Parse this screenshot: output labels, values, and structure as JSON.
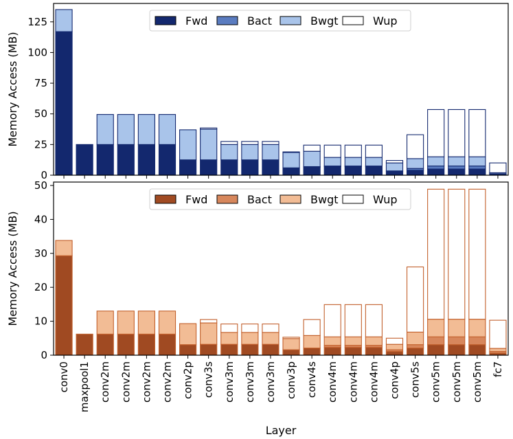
{
  "chart_data": [
    {
      "type": "bar",
      "stacked": true,
      "ylabel": "Memory Access (MB)",
      "xlabel": "",
      "ylim": [
        0,
        140
      ],
      "yticks": [
        0,
        25,
        50,
        75,
        100,
        125
      ],
      "legend_position": "top-center",
      "categories": [
        "conv0",
        "maxpool1",
        "conv2m",
        "conv2m",
        "conv2m",
        "conv2m",
        "conv2p",
        "conv3s",
        "conv3m",
        "conv3m",
        "conv3m",
        "conv3p",
        "conv4s",
        "conv4m",
        "conv4m",
        "conv4m",
        "conv4p",
        "conv5s",
        "conv5m",
        "conv5m",
        "conv5m",
        "fc7"
      ],
      "series": [
        {
          "name": "Fwd",
          "color": "#13286e",
          "values": [
            117,
            25,
            25,
            25,
            25,
            25,
            12.5,
            12.5,
            12.5,
            12.5,
            12.5,
            6,
            6.5,
            7,
            7,
            7,
            3,
            4,
            5,
            5,
            5,
            0.7
          ]
        },
        {
          "name": "Bact",
          "color": "#5a7cc0",
          "values": [
            0,
            0,
            0,
            0,
            0,
            0,
            0,
            0,
            0,
            0,
            0,
            0,
            0.5,
            0.5,
            0.5,
            0.5,
            0.5,
            1.5,
            2.5,
            2.5,
            2.5,
            0.5
          ]
        },
        {
          "name": "Bwgt",
          "color": "#a9c4ea",
          "values": [
            18,
            0,
            24.5,
            24.5,
            24.5,
            24.5,
            24.5,
            25,
            12.5,
            12.5,
            12.5,
            12.5,
            12.5,
            7,
            7,
            7,
            6.5,
            8,
            7.5,
            7.5,
            7.5,
            0.8
          ]
        },
        {
          "name": "Wup",
          "color": "#ffffff",
          "values": [
            0,
            0,
            0,
            0,
            0,
            0,
            0,
            1,
            2.5,
            2.5,
            2.5,
            0.5,
            5,
            10,
            10,
            10,
            2,
            19.5,
            38.5,
            38.5,
            38.5,
            8
          ]
        }
      ],
      "edge_color": "#13286e"
    },
    {
      "type": "bar",
      "stacked": true,
      "ylabel": "Memory Access (MB)",
      "xlabel": "Layer",
      "ylim": [
        0,
        51
      ],
      "yticks": [
        0,
        10,
        20,
        30,
        40,
        50
      ],
      "legend_position": "top-center",
      "categories": [
        "conv0",
        "maxpool1",
        "conv2m",
        "conv2m",
        "conv2m",
        "conv2m",
        "conv2p",
        "conv3s",
        "conv3m",
        "conv3m",
        "conv3m",
        "conv3p",
        "conv4s",
        "conv4m",
        "conv4m",
        "conv4m",
        "conv4p",
        "conv5s",
        "conv5m",
        "conv5m",
        "conv5m",
        "fc7"
      ],
      "series": [
        {
          "name": "Fwd",
          "color": "#a04a22",
          "values": [
            29.3,
            6.2,
            6.2,
            6.2,
            6.2,
            6.2,
            3.1,
            3.2,
            3.2,
            3.2,
            3.2,
            1.6,
            2.1,
            2.3,
            2.3,
            2.3,
            1.1,
            2.1,
            3.1,
            3.1,
            3.1,
            0.6
          ]
        },
        {
          "name": "Bact",
          "color": "#d7875c",
          "values": [
            0,
            0,
            0,
            0,
            0,
            0,
            0,
            0,
            0,
            0,
            0,
            0,
            0,
            0.6,
            0.6,
            0.6,
            0.5,
            1.0,
            2.3,
            2.3,
            2.3,
            0.5
          ]
        },
        {
          "name": "Bwgt",
          "color": "#f2bc95",
          "values": [
            4.5,
            0,
            6.8,
            6.8,
            6.8,
            6.8,
            6.2,
            6.3,
            3.5,
            3.5,
            3.5,
            3.3,
            3.7,
            2.5,
            2.5,
            2.5,
            1.6,
            3.7,
            5.2,
            5.2,
            5.2,
            0.9
          ]
        },
        {
          "name": "Wup",
          "color": "#ffffff",
          "values": [
            0,
            0,
            0,
            0,
            0,
            0,
            0,
            1.0,
            2.5,
            2.5,
            2.5,
            0.4,
            4.7,
            9.5,
            9.5,
            9.5,
            1.8,
            19.2,
            38.3,
            38.3,
            38.3,
            8.3
          ]
        }
      ],
      "edge_color": "#c2602c"
    }
  ]
}
